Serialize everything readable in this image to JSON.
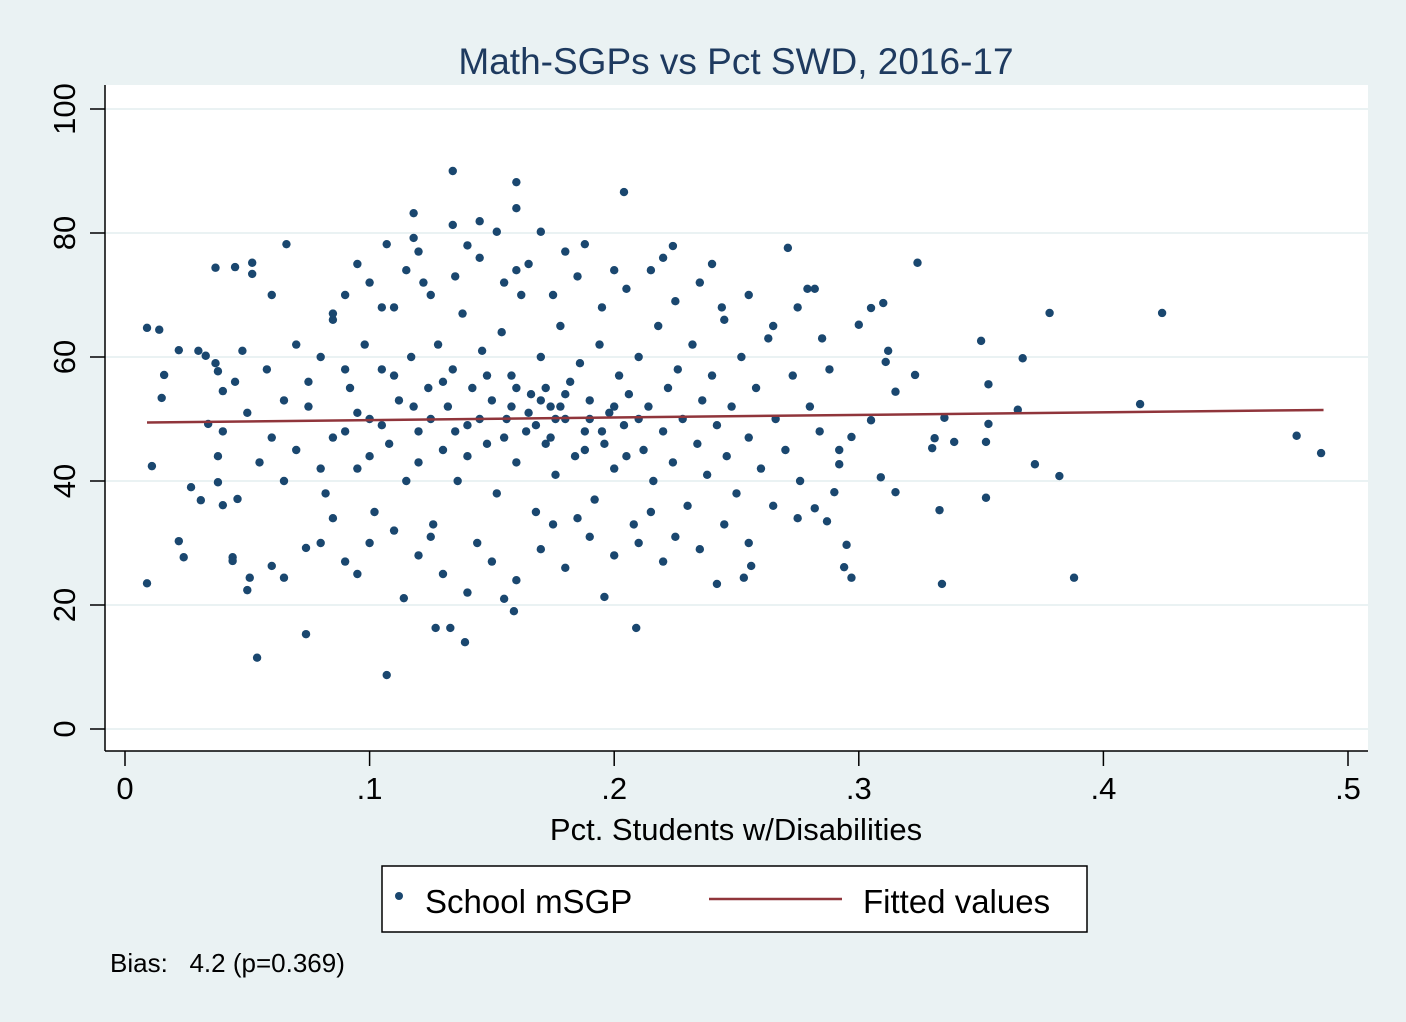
{
  "chart_data": {
    "type": "scatter",
    "title": "Math-SGPs vs Pct SWD, 2016-17",
    "xlabel": "Pct. Students w/Disabilities",
    "ylabel": "",
    "xlim": [
      0,
      0.5
    ],
    "ylim": [
      0,
      100
    ],
    "xticks": [
      0,
      0.1,
      0.2,
      0.3,
      0.4,
      0.5
    ],
    "xtick_labels": [
      "0",
      ".1",
      ".2",
      ".3",
      ".4",
      ".5"
    ],
    "yticks": [
      0,
      20,
      40,
      60,
      80,
      100
    ],
    "ytick_labels": [
      "0",
      "20",
      "40",
      "60",
      "80",
      "100"
    ],
    "grid": true,
    "legend": {
      "placement": "bottom",
      "entries": [
        "School mSGP",
        "Fitted values"
      ]
    },
    "annotation": "Bias:   4.2 (p=0.369)",
    "colors": {
      "points": "#1a476f",
      "fit": "#90353b",
      "background": "#eaf2f3",
      "plot": "#ffffff",
      "grid": "#eaf2f3"
    },
    "series": [
      {
        "name": "School mSGP",
        "type": "scatter",
        "points": [
          [
            0.009,
            23.5
          ],
          [
            0.009,
            64.7
          ],
          [
            0.014,
            64.4
          ],
          [
            0.011,
            42.4
          ],
          [
            0.016,
            57.1
          ],
          [
            0.015,
            53.4
          ],
          [
            0.022,
            30.3
          ],
          [
            0.024,
            27.7
          ],
          [
            0.022,
            61.1
          ],
          [
            0.027,
            39
          ],
          [
            0.03,
            61
          ],
          [
            0.031,
            36.9
          ],
          [
            0.033,
            60.2
          ],
          [
            0.034,
            49.2
          ],
          [
            0.037,
            74.4
          ],
          [
            0.045,
            74.5
          ],
          [
            0.052,
            75.2
          ],
          [
            0.052,
            73.4
          ],
          [
            0.037,
            59
          ],
          [
            0.038,
            57.7
          ],
          [
            0.04,
            54.5
          ],
          [
            0.038,
            39.8
          ],
          [
            0.04,
            36.1
          ],
          [
            0.044,
            27.7
          ],
          [
            0.044,
            27.1
          ],
          [
            0.046,
            37.1
          ],
          [
            0.05,
            22.4
          ],
          [
            0.051,
            24.4
          ],
          [
            0.054,
            11.5
          ],
          [
            0.06,
            26.3
          ],
          [
            0.065,
            24.4
          ],
          [
            0.066,
            78.2
          ],
          [
            0.06,
            70
          ],
          [
            0.074,
            15.3
          ],
          [
            0.074,
            29.2
          ],
          [
            0.107,
            8.7
          ],
          [
            0.114,
            21.1
          ],
          [
            0.134,
            90
          ],
          [
            0.127,
            16.3
          ],
          [
            0.133,
            16.3
          ],
          [
            0.139,
            14
          ],
          [
            0.16,
            88.2
          ],
          [
            0.16,
            84
          ],
          [
            0.204,
            86.6
          ],
          [
            0.118,
            83.2
          ],
          [
            0.209,
            16.3
          ],
          [
            0.196,
            21.3
          ],
          [
            0.159,
            19
          ],
          [
            0.324,
            75.2
          ],
          [
            0.35,
            62.6
          ],
          [
            0.378,
            67.1
          ],
          [
            0.424,
            67.1
          ],
          [
            0.415,
            52.4
          ],
          [
            0.479,
            47.3
          ],
          [
            0.489,
            44.5
          ],
          [
            0.388,
            24.4
          ],
          [
            0.334,
            23.4
          ],
          [
            0.333,
            35.3
          ],
          [
            0.352,
            37.3
          ],
          [
            0.382,
            40.8
          ],
          [
            0.372,
            42.7
          ],
          [
            0.367,
            59.8
          ],
          [
            0.353,
            55.6
          ],
          [
            0.365,
            51.5
          ],
          [
            0.352,
            46.3
          ],
          [
            0.339,
            46.3
          ],
          [
            0.33,
            45.3
          ],
          [
            0.331,
            46.9
          ],
          [
            0.335,
            50.2
          ],
          [
            0.353,
            49.2
          ],
          [
            0.323,
            57.1
          ],
          [
            0.315,
            54.4
          ],
          [
            0.315,
            38.2
          ],
          [
            0.309,
            40.6
          ],
          [
            0.297,
            24.4
          ],
          [
            0.294,
            26.1
          ],
          [
            0.295,
            29.7
          ],
          [
            0.31,
            68.7
          ],
          [
            0.305,
            67.9
          ],
          [
            0.3,
            65.2
          ],
          [
            0.312,
            61
          ],
          [
            0.311,
            59.2
          ],
          [
            0.305,
            49.8
          ],
          [
            0.297,
            47.1
          ],
          [
            0.292,
            42.7
          ],
          [
            0.29,
            38.2
          ],
          [
            0.287,
            33.5
          ],
          [
            0.282,
            35.6
          ],
          [
            0.271,
            77.6
          ],
          [
            0.279,
            71
          ],
          [
            0.282,
            71
          ],
          [
            0.242,
            23.4
          ],
          [
            0.253,
            24.4
          ],
          [
            0.256,
            26.3
          ],
          [
            0.188,
            78.2
          ],
          [
            0.224,
            77.9
          ],
          [
            0.134,
            81.3
          ],
          [
            0.145,
            81.9
          ],
          [
            0.152,
            80.2
          ],
          [
            0.17,
            80.2
          ],
          [
            0.107,
            78.2
          ],
          [
            0.118,
            79.2
          ],
          [
            0.07,
            45
          ],
          [
            0.075,
            52
          ],
          [
            0.08,
            60
          ],
          [
            0.082,
            38
          ],
          [
            0.085,
            66
          ],
          [
            0.09,
            48
          ],
          [
            0.092,
            55
          ],
          [
            0.095,
            42
          ],
          [
            0.098,
            62
          ],
          [
            0.1,
            50
          ],
          [
            0.102,
            35
          ],
          [
            0.105,
            58
          ],
          [
            0.108,
            46
          ],
          [
            0.11,
            68
          ],
          [
            0.112,
            53
          ],
          [
            0.115,
            40
          ],
          [
            0.117,
            60
          ],
          [
            0.12,
            48
          ],
          [
            0.122,
            72
          ],
          [
            0.124,
            55
          ],
          [
            0.126,
            33
          ],
          [
            0.128,
            62
          ],
          [
            0.13,
            45
          ],
          [
            0.132,
            52
          ],
          [
            0.134,
            58
          ],
          [
            0.136,
            40
          ],
          [
            0.138,
            67
          ],
          [
            0.14,
            49
          ],
          [
            0.142,
            55
          ],
          [
            0.144,
            30
          ],
          [
            0.146,
            61
          ],
          [
            0.148,
            46
          ],
          [
            0.15,
            53
          ],
          [
            0.152,
            38
          ],
          [
            0.154,
            64
          ],
          [
            0.156,
            50
          ],
          [
            0.158,
            57
          ],
          [
            0.16,
            43
          ],
          [
            0.162,
            70
          ],
          [
            0.164,
            48
          ],
          [
            0.166,
            54
          ],
          [
            0.168,
            35
          ],
          [
            0.17,
            60
          ],
          [
            0.172,
            46
          ],
          [
            0.174,
            52
          ],
          [
            0.176,
            41
          ],
          [
            0.178,
            65
          ],
          [
            0.18,
            50
          ],
          [
            0.182,
            56
          ],
          [
            0.184,
            44
          ],
          [
            0.186,
            59
          ],
          [
            0.188,
            48
          ],
          [
            0.19,
            53
          ],
          [
            0.192,
            37
          ],
          [
            0.194,
            62
          ],
          [
            0.196,
            46
          ],
          [
            0.198,
            51
          ],
          [
            0.2,
            42
          ],
          [
            0.202,
            57
          ],
          [
            0.204,
            49
          ],
          [
            0.206,
            54
          ],
          [
            0.208,
            33
          ],
          [
            0.21,
            60
          ],
          [
            0.212,
            45
          ],
          [
            0.214,
            52
          ],
          [
            0.216,
            40
          ],
          [
            0.218,
            65
          ],
          [
            0.22,
            48
          ],
          [
            0.222,
            55
          ],
          [
            0.224,
            43
          ],
          [
            0.226,
            58
          ],
          [
            0.228,
            50
          ],
          [
            0.23,
            36
          ],
          [
            0.232,
            62
          ],
          [
            0.234,
            46
          ],
          [
            0.236,
            53
          ],
          [
            0.238,
            41
          ],
          [
            0.24,
            57
          ],
          [
            0.242,
            49
          ],
          [
            0.244,
            68
          ],
          [
            0.246,
            44
          ],
          [
            0.248,
            52
          ],
          [
            0.25,
            38
          ],
          [
            0.252,
            60
          ],
          [
            0.255,
            47
          ],
          [
            0.258,
            55
          ],
          [
            0.26,
            42
          ],
          [
            0.263,
            63
          ],
          [
            0.266,
            50
          ],
          [
            0.27,
            45
          ],
          [
            0.273,
            57
          ],
          [
            0.276,
            40
          ],
          [
            0.28,
            52
          ],
          [
            0.284,
            48
          ],
          [
            0.288,
            58
          ],
          [
            0.292,
            45
          ],
          [
            0.165,
            51
          ],
          [
            0.168,
            49
          ],
          [
            0.17,
            53
          ],
          [
            0.172,
            55
          ],
          [
            0.174,
            47
          ],
          [
            0.176,
            50
          ],
          [
            0.178,
            52
          ],
          [
            0.18,
            54
          ],
          [
            0.155,
            47
          ],
          [
            0.158,
            52
          ],
          [
            0.16,
            55
          ],
          [
            0.145,
            50
          ],
          [
            0.148,
            57
          ],
          [
            0.188,
            45
          ],
          [
            0.19,
            50
          ],
          [
            0.195,
            48
          ],
          [
            0.2,
            52
          ],
          [
            0.205,
            44
          ],
          [
            0.21,
            50
          ],
          [
            0.14,
            44
          ],
          [
            0.135,
            48
          ],
          [
            0.13,
            56
          ],
          [
            0.125,
            50
          ],
          [
            0.12,
            43
          ],
          [
            0.118,
            52
          ],
          [
            0.11,
            57
          ],
          [
            0.105,
            49
          ],
          [
            0.1,
            44
          ],
          [
            0.095,
            51
          ],
          [
            0.09,
            58
          ],
          [
            0.085,
            47
          ],
          [
            0.08,
            42
          ],
          [
            0.075,
            56
          ],
          [
            0.07,
            62
          ],
          [
            0.065,
            40
          ],
          [
            0.065,
            53
          ],
          [
            0.06,
            47
          ],
          [
            0.058,
            58
          ],
          [
            0.055,
            43
          ],
          [
            0.05,
            51
          ],
          [
            0.048,
            61
          ],
          [
            0.045,
            56
          ],
          [
            0.04,
            48
          ],
          [
            0.038,
            44
          ],
          [
            0.12,
            28
          ],
          [
            0.13,
            25
          ],
          [
            0.15,
            27
          ],
          [
            0.16,
            24
          ],
          [
            0.17,
            29
          ],
          [
            0.18,
            26
          ],
          [
            0.19,
            31
          ],
          [
            0.2,
            28
          ],
          [
            0.21,
            30
          ],
          [
            0.22,
            27
          ],
          [
            0.14,
            22
          ],
          [
            0.155,
            21
          ],
          [
            0.1,
            30
          ],
          [
            0.09,
            27
          ],
          [
            0.095,
            25
          ],
          [
            0.11,
            32
          ],
          [
            0.125,
            31
          ],
          [
            0.175,
            33
          ],
          [
            0.185,
            34
          ],
          [
            0.215,
            35
          ],
          [
            0.225,
            31
          ],
          [
            0.235,
            29
          ],
          [
            0.245,
            33
          ],
          [
            0.255,
            30
          ],
          [
            0.265,
            36
          ],
          [
            0.275,
            34
          ],
          [
            0.085,
            34
          ],
          [
            0.08,
            30
          ],
          [
            0.1,
            72
          ],
          [
            0.105,
            68
          ],
          [
            0.115,
            74
          ],
          [
            0.125,
            70
          ],
          [
            0.135,
            73
          ],
          [
            0.145,
            76
          ],
          [
            0.155,
            72
          ],
          [
            0.165,
            75
          ],
          [
            0.175,
            70
          ],
          [
            0.185,
            73
          ],
          [
            0.195,
            68
          ],
          [
            0.205,
            71
          ],
          [
            0.215,
            74
          ],
          [
            0.225,
            69
          ],
          [
            0.235,
            72
          ],
          [
            0.245,
            66
          ],
          [
            0.255,
            70
          ],
          [
            0.265,
            65
          ],
          [
            0.275,
            68
          ],
          [
            0.285,
            63
          ],
          [
            0.09,
            70
          ],
          [
            0.085,
            67
          ],
          [
            0.095,
            75
          ],
          [
            0.12,
            77
          ],
          [
            0.14,
            78
          ],
          [
            0.16,
            74
          ],
          [
            0.18,
            77
          ],
          [
            0.2,
            74
          ],
          [
            0.22,
            76
          ],
          [
            0.24,
            75
          ]
        ]
      },
      {
        "name": "Fitted values",
        "type": "line",
        "points": [
          [
            0.009,
            49.44
          ],
          [
            0.49,
            51.46
          ]
        ]
      }
    ]
  }
}
